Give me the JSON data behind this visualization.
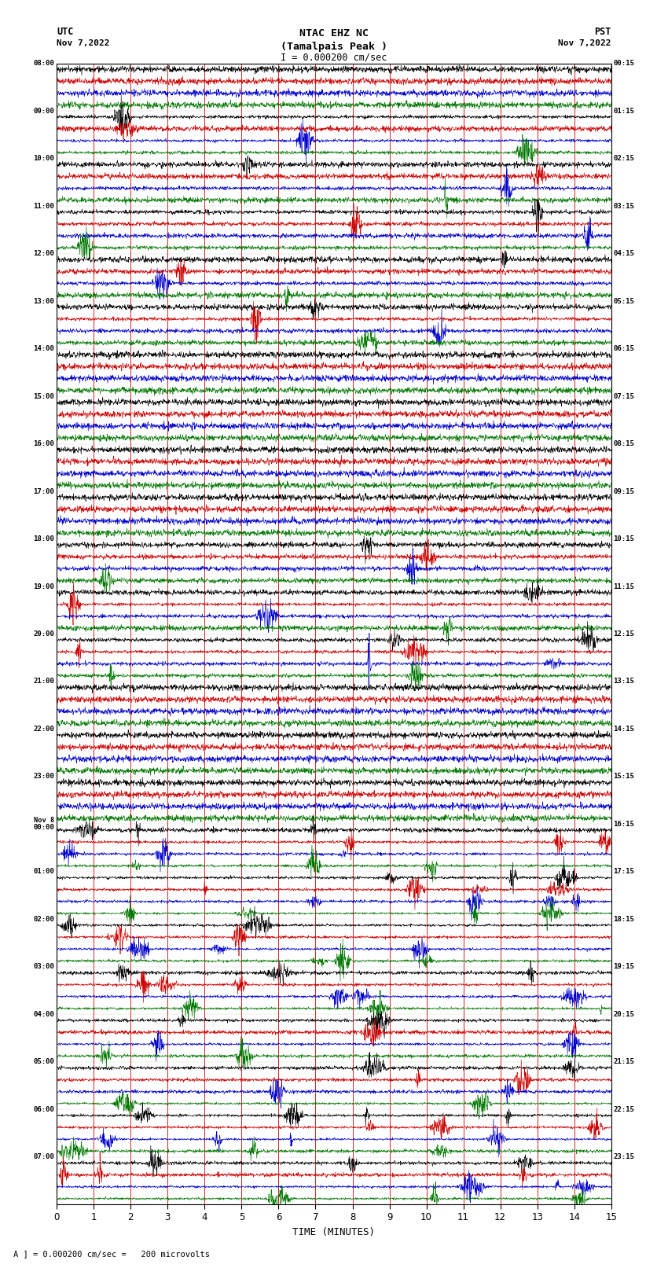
{
  "title_line1": "NTAC EHZ NC",
  "title_line2": "(Tamalpais Peak )",
  "title_line3": "I = 0.000200 cm/sec",
  "xlabel": "TIME (MINUTES)",
  "footer": "A ] = 0.000200 cm/sec =   200 microvolts",
  "xlim": [
    0,
    15
  ],
  "n_rows": 24,
  "traces_per_row": 4,
  "trace_colors": [
    "#000000",
    "#cc0000",
    "#0000cc",
    "#007700"
  ],
  "bg_color": "#ffffff",
  "grid_color": "#cc0000",
  "utc_labels": [
    "08:00",
    "09:00",
    "10:00",
    "11:00",
    "12:00",
    "13:00",
    "14:00",
    "15:00",
    "16:00",
    "17:00",
    "18:00",
    "19:00",
    "20:00",
    "21:00",
    "22:00",
    "23:00",
    "Nov 8||00:00",
    "01:00",
    "02:00",
    "03:00",
    "04:00",
    "05:00",
    "06:00",
    "07:00"
  ],
  "pst_labels": [
    "00:15",
    "01:15",
    "02:15",
    "03:15",
    "04:15",
    "05:15",
    "06:15",
    "07:15",
    "08:15",
    "09:15",
    "10:15",
    "11:15",
    "12:15",
    "13:15",
    "14:15",
    "15:15",
    "16:15",
    "17:15",
    "18:15",
    "19:15",
    "20:15",
    "21:15",
    "22:15",
    "23:15"
  ],
  "fig_width": 8.5,
  "fig_height": 16.13,
  "dpi": 100
}
